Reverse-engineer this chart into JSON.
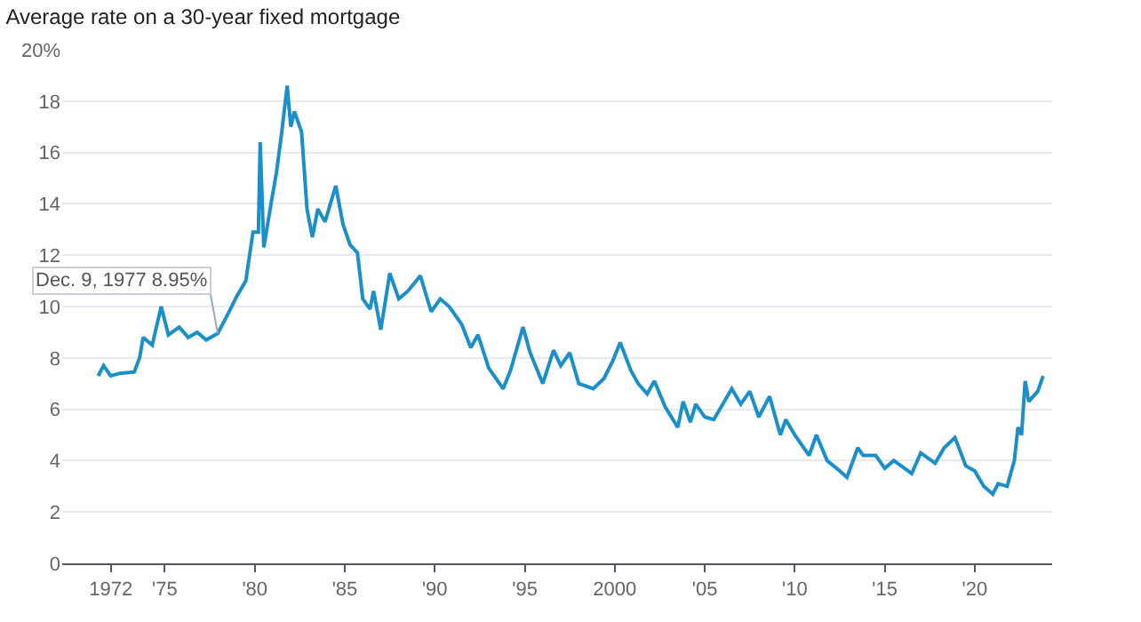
{
  "chart_data": {
    "type": "line",
    "title": "Average rate on a 30-year fixed mortgage",
    "x": [
      1971.3,
      1971.6,
      1972.0,
      1972.5,
      1973.3,
      1973.6,
      1973.8,
      1974.3,
      1974.8,
      1975.2,
      1975.8,
      1976.3,
      1976.8,
      1977.3,
      1977.94,
      1978.5,
      1979.0,
      1979.5,
      1979.9,
      1980.2,
      1980.3,
      1980.5,
      1980.9,
      1981.2,
      1981.5,
      1981.8,
      1982.0,
      1982.2,
      1982.6,
      1982.9,
      1983.2,
      1983.5,
      1983.9,
      1984.5,
      1984.9,
      1985.3,
      1985.7,
      1986.0,
      1986.4,
      1986.6,
      1987.0,
      1987.5,
      1988.0,
      1988.5,
      1989.2,
      1989.8,
      1990.3,
      1990.8,
      1991.5,
      1992.0,
      1992.4,
      1993.0,
      1993.8,
      1994.2,
      1994.9,
      1995.3,
      1996.0,
      1996.6,
      1997.0,
      1997.5,
      1998.0,
      1998.8,
      1999.4,
      1999.9,
      2000.3,
      2000.9,
      2001.3,
      2001.8,
      2002.2,
      2002.8,
      2003.5,
      2003.8,
      2004.2,
      2004.5,
      2005.0,
      2005.5,
      2006.5,
      2007.0,
      2007.5,
      2008.0,
      2008.6,
      2009.2,
      2009.5,
      2010.0,
      2010.8,
      2011.2,
      2011.8,
      2012.5,
      2012.9,
      2013.5,
      2013.8,
      2014.5,
      2015.0,
      2015.5,
      2016.5,
      2017.0,
      2017.8,
      2018.3,
      2018.9,
      2019.5,
      2020.0,
      2020.5,
      2021.0,
      2021.3,
      2021.8,
      2022.2,
      2022.4,
      2022.6,
      2022.8,
      2023.0,
      2023.5,
      2023.8
    ],
    "series": [
      {
        "color": "#1a8fc9",
        "values": [
          7.3,
          7.7,
          7.3,
          7.4,
          7.45,
          8.0,
          8.8,
          8.5,
          10.0,
          8.9,
          9.2,
          8.8,
          9.0,
          8.7,
          8.95,
          9.7,
          10.4,
          11.0,
          12.9,
          12.9,
          16.4,
          12.3,
          14.0,
          15.2,
          16.8,
          18.6,
          17.0,
          17.6,
          16.8,
          13.8,
          12.7,
          13.8,
          13.3,
          14.7,
          13.2,
          12.4,
          12.1,
          10.3,
          9.9,
          10.6,
          9.1,
          11.3,
          10.3,
          10.6,
          11.2,
          9.8,
          10.3,
          10.0,
          9.3,
          8.4,
          8.9,
          7.6,
          6.8,
          7.5,
          9.2,
          8.2,
          7.0,
          8.3,
          7.7,
          8.2,
          7.0,
          6.8,
          7.2,
          7.9,
          8.6,
          7.5,
          7.0,
          6.6,
          7.1,
          6.1,
          5.3,
          6.3,
          5.5,
          6.2,
          5.7,
          5.6,
          6.8,
          6.2,
          6.7,
          5.7,
          6.5,
          5.0,
          5.6,
          5.0,
          4.2,
          5.0,
          4.0,
          3.6,
          3.35,
          4.5,
          4.2,
          4.2,
          3.7,
          4.0,
          3.5,
          4.3,
          3.9,
          4.5,
          4.9,
          3.8,
          3.6,
          3.0,
          2.7,
          3.1,
          3.0,
          4.0,
          5.3,
          5.0,
          7.1,
          6.3,
          6.7,
          7.3
        ]
      }
    ],
    "annotations": [
      {
        "text": "Dec. 9, 1977 8.95%",
        "x": 1977.94,
        "y": 8.95
      }
    ],
    "xlim": [
      1969.3,
      2024.3
    ],
    "xticks": [
      {
        "value": 1972,
        "label": "1972"
      },
      {
        "value": 1975,
        "label": "'75"
      },
      {
        "value": 1980,
        "label": "'80"
      },
      {
        "value": 1985,
        "label": "'85"
      },
      {
        "value": 1990,
        "label": "'90"
      },
      {
        "value": 1995,
        "label": "'95"
      },
      2000,
      {
        "value": 2005,
        "label": "'05"
      },
      {
        "value": 2010,
        "label": "'10"
      },
      {
        "value": 2015,
        "label": "'15"
      },
      {
        "value": 2020,
        "label": "'20"
      }
    ],
    "ylim": [
      0,
      20
    ],
    "yticks": [
      0,
      2,
      4,
      6,
      8,
      10,
      12,
      14,
      16,
      18,
      {
        "value": 20,
        "label": "20%"
      }
    ],
    "grid": "y",
    "marker": "none",
    "line_style": "solid"
  }
}
